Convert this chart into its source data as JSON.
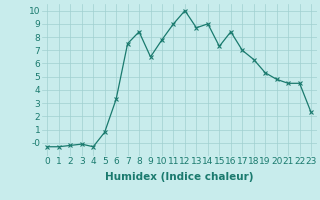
{
  "xlabel": "Humidex (Indice chaleur)",
  "ylabel": "",
  "x": [
    0,
    1,
    2,
    3,
    4,
    5,
    6,
    7,
    8,
    9,
    10,
    11,
    12,
    13,
    14,
    15,
    16,
    17,
    18,
    19,
    20,
    21,
    22,
    23
  ],
  "y": [
    -0.3,
    -0.3,
    -0.2,
    -0.1,
    -0.3,
    0.8,
    3.3,
    7.5,
    8.4,
    6.5,
    7.8,
    9.0,
    10.0,
    8.7,
    9.0,
    7.3,
    8.4,
    7.0,
    6.3,
    5.3,
    4.8,
    4.5,
    4.5,
    2.3
  ],
  "line_color": "#1a7a6e",
  "marker": "x",
  "marker_size": 2.5,
  "marker_linewidth": 0.8,
  "line_width": 0.9,
  "background_color": "#c8ecec",
  "grid_color": "#a0d0d0",
  "ylim": [
    -1,
    10.5
  ],
  "xlim": [
    -0.5,
    23.5
  ],
  "yticks": [
    0,
    1,
    2,
    3,
    4,
    5,
    6,
    7,
    8,
    9,
    10
  ],
  "ytick_labels": [
    "-0",
    "1",
    "2",
    "3",
    "4",
    "5",
    "6",
    "7",
    "8",
    "9",
    "10"
  ],
  "xtick_labels": [
    "0",
    "1",
    "2",
    "3",
    "4",
    "5",
    "6",
    "7",
    "8",
    "9",
    "10",
    "11",
    "12",
    "13",
    "14",
    "15",
    "16",
    "17",
    "18",
    "19",
    "20",
    "21",
    "22",
    "23"
  ],
  "label_fontsize": 7.5,
  "tick_fontsize": 6.5,
  "tick_color": "#1a7a6e",
  "label_color": "#1a7a6e"
}
